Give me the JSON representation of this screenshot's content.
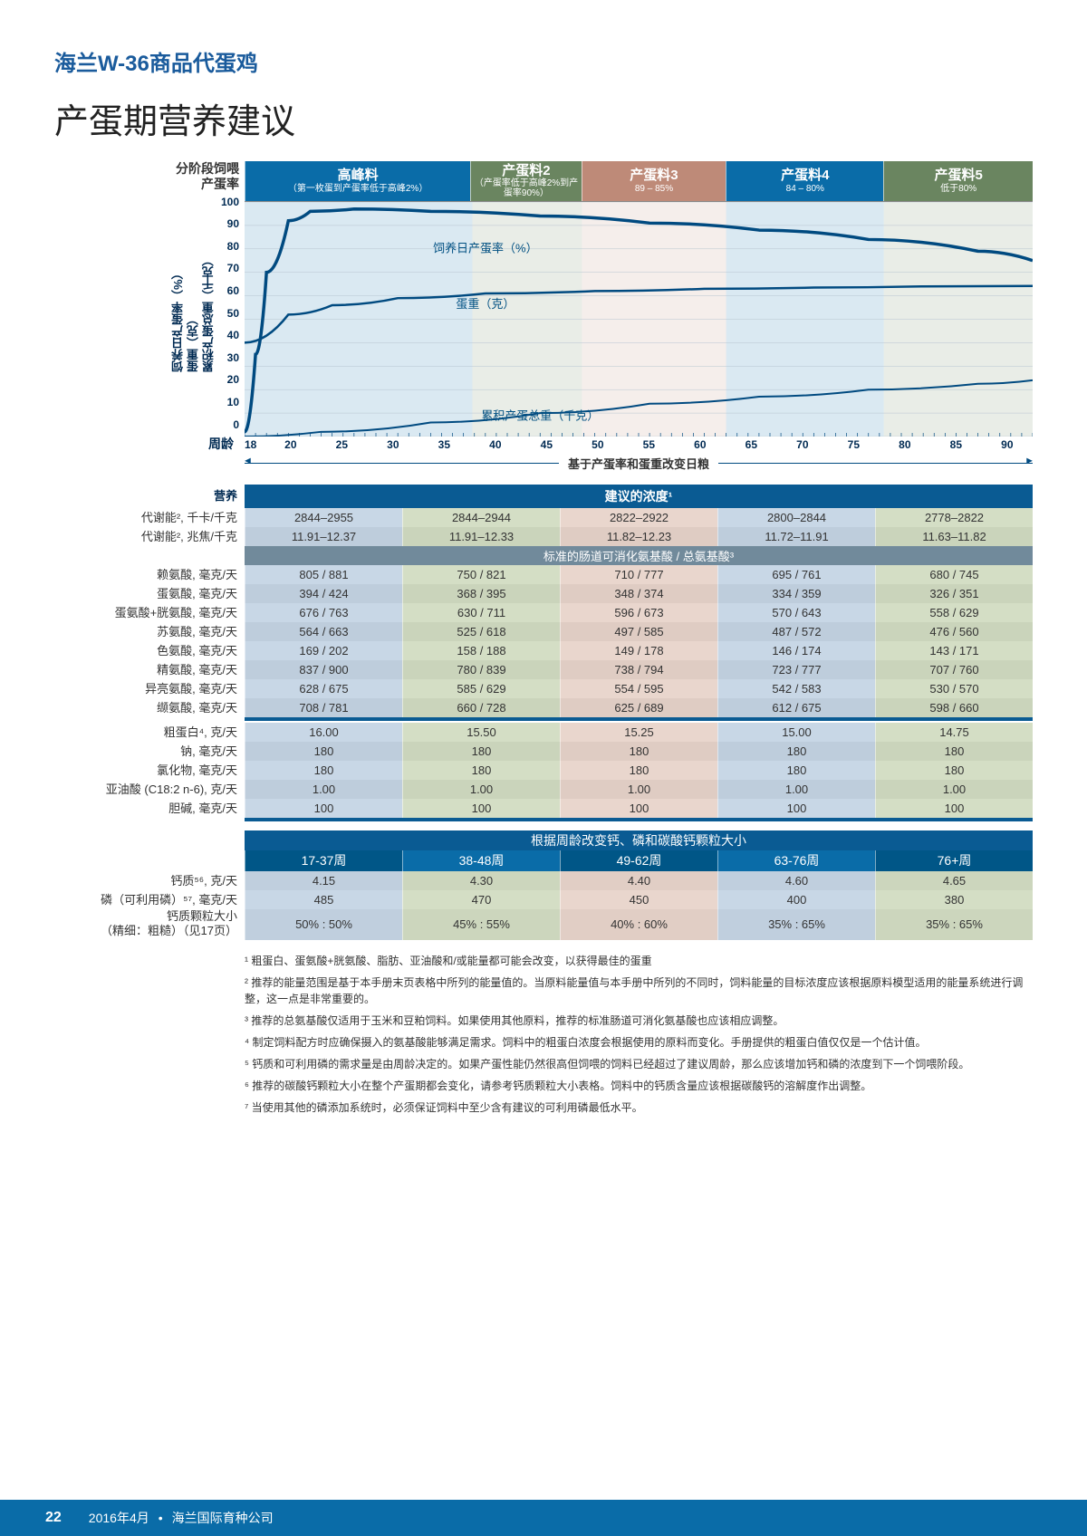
{
  "header": {
    "strain": "海兰W-36商品代蛋鸡",
    "title": "产蛋期营养建议"
  },
  "chart": {
    "phase_label_left": [
      "分阶段饲喂",
      "产蛋率"
    ],
    "yaxis_title": "饲养日产蛋率（%）\n蛋重（克）\n累积产蛋总重（千克）",
    "x_label": "周龄",
    "y_ticks": [
      "100",
      "90",
      "80",
      "70",
      "60",
      "50",
      "40",
      "30",
      "20",
      "10",
      "0"
    ],
    "x_ticks": [
      "18",
      "20",
      "25",
      "30",
      "35",
      "40",
      "45",
      "50",
      "55",
      "60",
      "65",
      "70",
      "75",
      "80",
      "85",
      "90"
    ],
    "x_min": 18,
    "x_max": 90,
    "phases": [
      {
        "title": "高峰料",
        "sub": "（第一枚蛋到产蛋率低于高峰2%）",
        "fr": 0.289,
        "color": "#0a6ca8"
      },
      {
        "title": "产蛋料2",
        "sub": "（产蛋率低于高峰2%到产蛋率90%）",
        "fr": 0.139,
        "color": "#6a8560"
      },
      {
        "title": "产蛋料3",
        "sub": "89 – 85%",
        "fr": 0.183,
        "color": "#be8a78"
      },
      {
        "title": "产蛋料4",
        "sub": "84 – 80%",
        "fr": 0.2,
        "color": "#0a6ca8"
      },
      {
        "title": "产蛋料5",
        "sub": "低于80%",
        "fr": 0.189,
        "color": "#6a8560"
      }
    ],
    "curve_colors": {
      "hd": "#004a80",
      "ew": "#004a80",
      "em": "#004a80"
    },
    "labels": {
      "hd": "饲养日产蛋率（%）",
      "ew": "蛋重（克）",
      "em": "累积产蛋总重（千克）"
    },
    "hd_pts": [
      [
        18,
        2
      ],
      [
        19,
        35
      ],
      [
        20,
        70
      ],
      [
        22,
        92
      ],
      [
        24,
        96
      ],
      [
        28,
        97
      ],
      [
        35,
        96
      ],
      [
        45,
        94
      ],
      [
        55,
        91
      ],
      [
        65,
        88
      ],
      [
        75,
        84
      ],
      [
        85,
        79
      ],
      [
        90,
        75
      ]
    ],
    "ew_pts": [
      [
        18,
        40
      ],
      [
        22,
        52
      ],
      [
        26,
        56
      ],
      [
        32,
        59
      ],
      [
        40,
        61
      ],
      [
        50,
        62
      ],
      [
        60,
        63
      ],
      [
        70,
        63.5
      ],
      [
        80,
        64
      ],
      [
        90,
        64.2
      ]
    ],
    "em_pts": [
      [
        18,
        0
      ],
      [
        25,
        2
      ],
      [
        35,
        6
      ],
      [
        45,
        10
      ],
      [
        55,
        14
      ],
      [
        65,
        17
      ],
      [
        75,
        20
      ],
      [
        85,
        22.5
      ],
      [
        90,
        24
      ]
    ],
    "divider_text": "基于产蛋率和蛋重改变日粮"
  },
  "nutrition": {
    "section_label": "营养",
    "head": "建议的浓度¹",
    "energy_labels": [
      "代谢能², 千卡/千克",
      "代谢能², 兆焦/千克"
    ],
    "energy_rows": [
      [
        "2844–2955",
        "2844–2944",
        "2822–2922",
        "2800–2844",
        "2778–2822"
      ],
      [
        "11.91–12.37",
        "11.91–12.33",
        "11.82–12.23",
        "11.72–11.91",
        "11.63–11.82"
      ]
    ],
    "aa_head": "标准的肠道可消化氨基酸 / 总氨基酸³",
    "aa_labels": [
      "赖氨酸, 毫克/天",
      "蛋氨酸, 毫克/天",
      "蛋氨酸+胱氨酸, 毫克/天",
      "苏氨酸, 毫克/天",
      "色氨酸, 毫克/天",
      "精氨酸, 毫克/天",
      "异亮氨酸, 毫克/天",
      "缬氨酸, 毫克/天"
    ],
    "aa_rows": [
      [
        "805 / 881",
        "750 / 821",
        "710 / 777",
        "695 / 761",
        "680 / 745"
      ],
      [
        "394 / 424",
        "368 / 395",
        "348 / 374",
        "334 / 359",
        "326 / 351"
      ],
      [
        "676 / 763",
        "630 / 711",
        "596 / 673",
        "570 / 643",
        "558 / 629"
      ],
      [
        "564 / 663",
        "525 / 618",
        "497 / 585",
        "487 / 572",
        "476 / 560"
      ],
      [
        "169 / 202",
        "158 / 188",
        "149 / 178",
        "146 / 174",
        "143 / 171"
      ],
      [
        "837 / 900",
        "780 / 839",
        "738 / 794",
        "723 / 777",
        "707 / 760"
      ],
      [
        "628 / 675",
        "585 / 629",
        "554 / 595",
        "542 / 583",
        "530 / 570"
      ],
      [
        "708 / 781",
        "660 / 728",
        "625 / 689",
        "612 / 675",
        "598 / 660"
      ]
    ],
    "other_labels": [
      "粗蛋白⁴, 克/天",
      "钠, 毫克/天",
      "氯化物, 毫克/天",
      "亚油酸 (C18:2 n-6), 克/天",
      "胆碱, 毫克/天"
    ],
    "other_rows": [
      [
        "16.00",
        "15.50",
        "15.25",
        "15.00",
        "14.75"
      ],
      [
        "180",
        "180",
        "180",
        "180",
        "180"
      ],
      [
        "180",
        "180",
        "180",
        "180",
        "180"
      ],
      [
        "1.00",
        "1.00",
        "1.00",
        "1.00",
        "1.00"
      ],
      [
        "100",
        "100",
        "100",
        "100",
        "100"
      ]
    ],
    "col_colors": [
      "#c8d7e6",
      "#d4dec5",
      "#e9d6cd",
      "#c8d7e6",
      "#d4dec5"
    ]
  },
  "age_table": {
    "head": "根据周龄改变钙、磷和碳酸钙颗粒大小",
    "cols": [
      "17-37周",
      "38-48周",
      "49-62周",
      "63-76周",
      "76+周"
    ],
    "labels": [
      "钙质⁵⁶, 克/天",
      "磷（可利用磷）⁵⁷, 毫克/天",
      "钙质颗粒大小\n（精细：粗糙）（见17页）"
    ],
    "rows": [
      [
        "4.15",
        "4.30",
        "4.40",
        "4.60",
        "4.65"
      ],
      [
        "485",
        "470",
        "450",
        "400",
        "380"
      ],
      [
        "50% : 50%",
        "45% : 55%",
        "40% : 60%",
        "35% : 65%",
        "35% : 65%"
      ]
    ],
    "col_colors": [
      "#c8d7e6",
      "#d4dec5",
      "#e9d6cd",
      "#c8d7e6",
      "#d4dec5"
    ]
  },
  "footnotes": [
    "¹ 粗蛋白、蛋氨酸+胱氨酸、脂肪、亚油酸和/或能量都可能会改变，以获得最佳的蛋重",
    "² 推荐的能量范围是基于本手册末页表格中所列的能量值的。当原料能量值与本手册中所列的不同时，饲料能量的目标浓度应该根据原料模型适用的能量系统进行调整，这一点是非常重要的。",
    "³ 推荐的总氨基酸仅适用于玉米和豆粕饲料。如果使用其他原料，推荐的标准肠道可消化氨基酸也应该相应调整。",
    "⁴ 制定饲料配方时应确保摄入的氨基酸能够满足需求。饲料中的粗蛋白浓度会根据使用的原料而变化。手册提供的粗蛋白值仅仅是一个估计值。",
    "⁵ 钙质和可利用磷的需求量是由周龄决定的。如果产蛋性能仍然很高但饲喂的饲料已经超过了建议周龄，那么应该增加钙和磷的浓度到下一个饲喂阶段。",
    "⁶ 推荐的碳酸钙颗粒大小在整个产蛋期都会变化，请参考钙质颗粒大小表格。饲料中的钙质含量应该根据碳酸钙的溶解度作出调整。",
    "⁷ 当使用其他的磷添加系统时，必须保证饲料中至少含有建议的可利用磷最低水平。"
  ],
  "footer": {
    "page": "22",
    "date": "2016年4月",
    "company": "海兰国际育种公司"
  }
}
